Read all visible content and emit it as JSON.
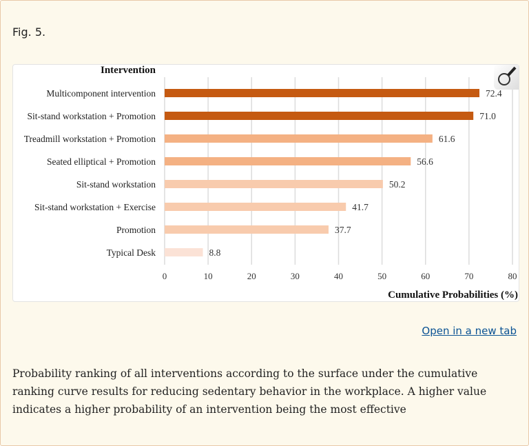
{
  "figure": {
    "label": "Fig. 5.",
    "open_link": "Open in a new tab",
    "caption": "Probability ranking of all interventions according to the surface under the cumulative ranking curve results for reducing sedentary behavior in the workplace. A higher value indicates a higher probability of an intervention being the most effective",
    "zoom_icon": "magnifier-icon"
  },
  "chart_data": {
    "type": "bar",
    "orientation": "horizontal",
    "ylabel": "Intervention",
    "xlabel": "Cumulative Probabilities (%)",
    "categories": [
      "Multicomponent intervention",
      "Sit-stand workstation + Promotion",
      "Treadmill workstation + Promotion",
      "Seated elliptical + Promotion",
      "Sit-stand workstation",
      "Sit-stand workstation + Exercise",
      "Promotion",
      "Typical Desk"
    ],
    "values": [
      72.4,
      71.0,
      61.6,
      56.6,
      50.2,
      41.7,
      37.7,
      8.8
    ],
    "value_labels": [
      "72.4",
      "71.0",
      "61.6",
      "56.6",
      "50.2",
      "41.7",
      "37.7",
      "8.8"
    ],
    "bar_colors": [
      "#c55a11",
      "#c55a11",
      "#f4b183",
      "#f4b183",
      "#f8cbad",
      "#f8cbad",
      "#f8cbad",
      "#fbe2d6"
    ],
    "xlim": [
      0,
      80
    ],
    "xticks": [
      "0",
      "10",
      "20",
      "30",
      "40",
      "50",
      "60",
      "70",
      "80"
    ],
    "grid": true
  }
}
